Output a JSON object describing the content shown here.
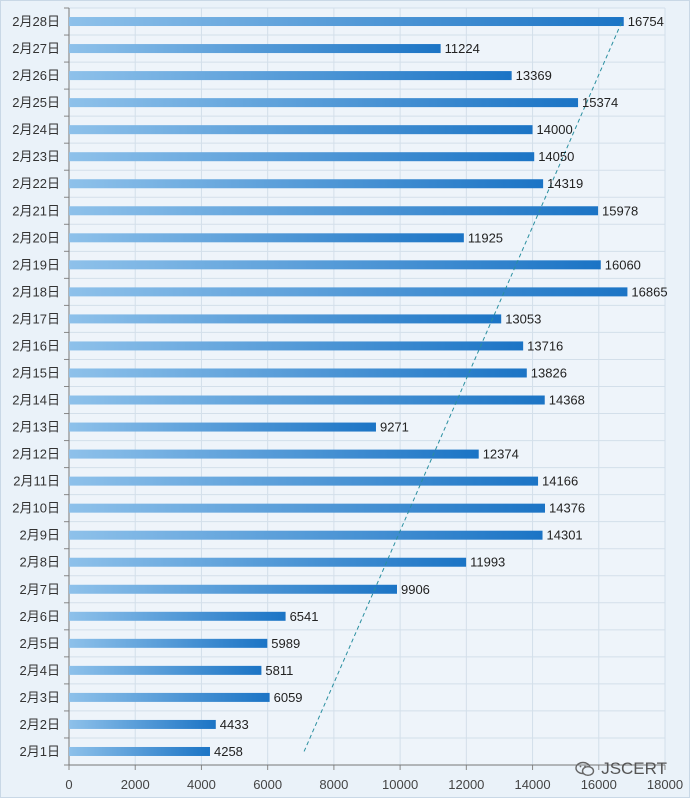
{
  "chart_data": {
    "type": "bar",
    "orientation": "horizontal",
    "title": "",
    "xlabel": "",
    "ylabel": "",
    "xlim": [
      0,
      18000
    ],
    "x_ticks": [
      0,
      2000,
      4000,
      6000,
      8000,
      10000,
      12000,
      14000,
      16000,
      18000
    ],
    "grid": true,
    "categories": [
      "2月1日",
      "2月2日",
      "2月3日",
      "2月4日",
      "2月5日",
      "2月6日",
      "2月7日",
      "2月8日",
      "2月9日",
      "2月10日",
      "2月11日",
      "2月12日",
      "2月13日",
      "2月14日",
      "2月15日",
      "2月16日",
      "2月17日",
      "2月18日",
      "2月19日",
      "2月20日",
      "2月21日",
      "2月22日",
      "2月23日",
      "2月24日",
      "2月25日",
      "2月26日",
      "2月27日",
      "2月28日"
    ],
    "values": [
      4258,
      4433,
      6059,
      5811,
      5989,
      6541,
      9906,
      11993,
      14301,
      14376,
      14166,
      12374,
      9271,
      14368,
      13826,
      13716,
      13053,
      16865,
      16060,
      11925,
      15978,
      14319,
      14050,
      14000,
      15374,
      13369,
      11224,
      16754
    ],
    "trendline": {
      "style": "dashed linear",
      "from": {
        "category": "2月1日",
        "value": 7100
      },
      "to": {
        "category": "2月28日",
        "value": 16700
      }
    },
    "colors": {
      "bar_start": "#8ec1ea",
      "bar_end": "#1b74c5",
      "trend": "#2a8fa0"
    }
  },
  "watermark": {
    "text": "JSCERT",
    "icon": "wechat-icon"
  }
}
